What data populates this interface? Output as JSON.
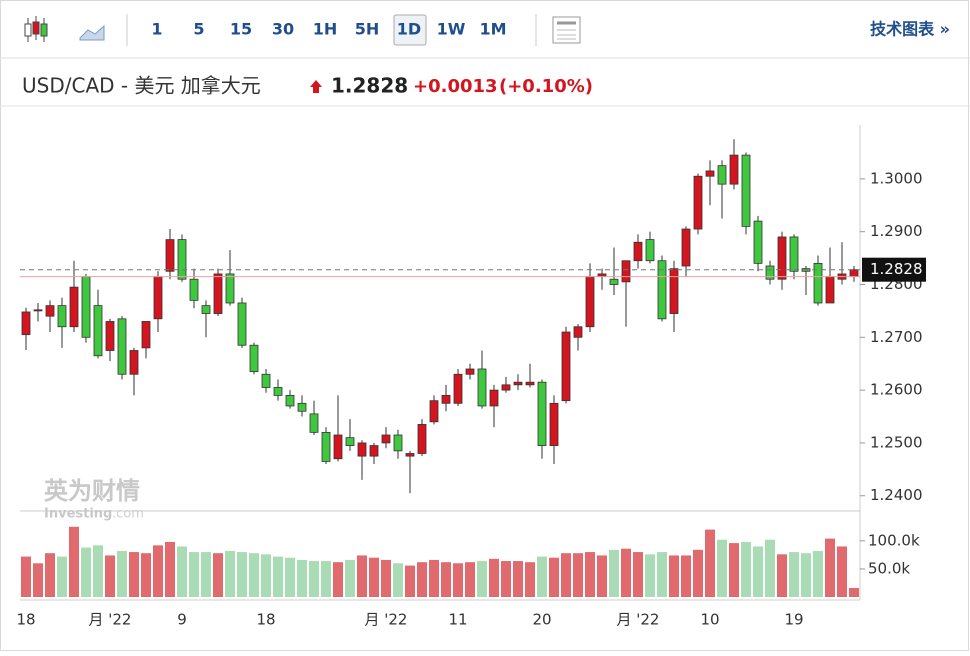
{
  "toolbar": {
    "intervals": [
      "1",
      "5",
      "15",
      "30",
      "1H",
      "5H",
      "1D",
      "1W",
      "1M"
    ],
    "selected": "1D",
    "link": "技术图表 »"
  },
  "header": {
    "title": "USD/CAD - 美元 加拿大元",
    "change": "+0.0013",
    "change_pct": "(+0.10%)"
  },
  "watermark": {
    "brand": "英为财情",
    "site": "Investing",
    "domain": ".com"
  },
  "chart_data": {
    "type": "candlestick",
    "categories": [
      "18",
      null,
      null,
      null,
      null,
      null,
      null,
      "月 '22",
      null,
      null,
      null,
      null,
      null,
      "9",
      null,
      null,
      null,
      null,
      null,
      null,
      "18",
      null,
      null,
      null,
      null,
      null,
      null,
      null,
      null,
      null,
      "月 '22",
      null,
      null,
      null,
      null,
      null,
      "11",
      null,
      null,
      null,
      null,
      null,
      null,
      "20",
      null,
      null,
      null,
      null,
      null,
      null,
      null,
      "月 '22",
      null,
      null,
      null,
      null,
      null,
      "10",
      null,
      null,
      null,
      null,
      null,
      null,
      "19",
      null,
      null,
      null,
      null,
      null
    ],
    "candles": [
      [
        1.2705,
        1.2756,
        1.2676,
        1.2748
      ],
      [
        1.275,
        1.2765,
        1.273,
        1.2752
      ],
      [
        1.274,
        1.277,
        1.271,
        1.276
      ],
      [
        1.276,
        1.2775,
        1.268,
        1.272
      ],
      [
        1.272,
        1.2845,
        1.271,
        1.2795
      ],
      [
        1.2815,
        1.282,
        1.269,
        1.27
      ],
      [
        1.276,
        1.279,
        1.266,
        1.2665
      ],
      [
        1.2675,
        1.2735,
        1.2655,
        1.273
      ],
      [
        1.2735,
        1.274,
        1.262,
        1.263
      ],
      [
        1.263,
        1.268,
        1.259,
        1.2675
      ],
      [
        1.268,
        1.273,
        1.266,
        1.273
      ],
      [
        1.2735,
        1.2825,
        1.271,
        1.2815
      ],
      [
        1.2825,
        1.2905,
        1.281,
        1.2885
      ],
      [
        1.2885,
        1.2895,
        1.2805,
        1.281
      ],
      [
        1.281,
        1.283,
        1.2755,
        1.277
      ],
      [
        1.276,
        1.277,
        1.27,
        1.2745
      ],
      [
        1.2745,
        1.283,
        1.274,
        1.282
      ],
      [
        1.282,
        1.2865,
        1.276,
        1.2765
      ],
      [
        1.2765,
        1.2775,
        1.268,
        1.2685
      ],
      [
        1.2685,
        1.269,
        1.263,
        1.2635
      ],
      [
        1.263,
        1.264,
        1.2595,
        1.2605
      ],
      [
        1.2605,
        1.262,
        1.258,
        1.259
      ],
      [
        1.259,
        1.26,
        1.2565,
        1.257
      ],
      [
        1.2575,
        1.259,
        1.255,
        1.256
      ],
      [
        1.2555,
        1.258,
        1.2515,
        1.252
      ],
      [
        1.252,
        1.253,
        1.246,
        1.2465
      ],
      [
        1.247,
        1.259,
        1.2465,
        1.2515
      ],
      [
        1.251,
        1.2545,
        1.2485,
        1.2495
      ],
      [
        1.2475,
        1.2505,
        1.243,
        1.25
      ],
      [
        1.2475,
        1.25,
        1.246,
        1.2495
      ],
      [
        1.25,
        1.253,
        1.249,
        1.2515
      ],
      [
        1.2515,
        1.2525,
        1.247,
        1.2485
      ],
      [
        1.2475,
        1.2485,
        1.2405,
        1.248
      ],
      [
        1.248,
        1.2545,
        1.2475,
        1.2535
      ],
      [
        1.254,
        1.259,
        1.2535,
        1.258
      ],
      [
        1.2575,
        1.261,
        1.256,
        1.259
      ],
      [
        1.2575,
        1.264,
        1.257,
        1.263
      ],
      [
        1.263,
        1.265,
        1.262,
        1.264
      ],
      [
        1.264,
        1.2675,
        1.2565,
        1.257
      ],
      [
        1.257,
        1.261,
        1.253,
        1.26
      ],
      [
        1.26,
        1.2625,
        1.2595,
        1.261
      ],
      [
        1.261,
        1.263,
        1.26,
        1.2615
      ],
      [
        1.261,
        1.265,
        1.2605,
        1.2615
      ],
      [
        1.2615,
        1.262,
        1.247,
        1.2495
      ],
      [
        1.2495,
        1.259,
        1.246,
        1.2575
      ],
      [
        1.258,
        1.272,
        1.2575,
        1.271
      ],
      [
        1.27,
        1.2725,
        1.2675,
        1.272
      ],
      [
        1.272,
        1.284,
        1.271,
        1.2815
      ],
      [
        1.2815,
        1.283,
        1.279,
        1.282
      ],
      [
        1.281,
        1.287,
        1.278,
        1.28
      ],
      [
        1.2805,
        1.2845,
        1.272,
        1.2845
      ],
      [
        1.2845,
        1.2895,
        1.283,
        1.288
      ],
      [
        1.2885,
        1.29,
        1.284,
        1.2845
      ],
      [
        1.2845,
        1.2855,
        1.273,
        1.2735
      ],
      [
        1.2745,
        1.2845,
        1.271,
        1.283
      ],
      [
        1.2835,
        1.291,
        1.2815,
        1.2905
      ],
      [
        1.2905,
        1.301,
        1.2895,
        1.3005
      ],
      [
        1.3005,
        1.3035,
        1.295,
        1.3015
      ],
      [
        1.3025,
        1.3035,
        1.2925,
        1.299
      ],
      [
        1.299,
        1.3075,
        1.298,
        1.3045
      ],
      [
        1.3045,
        1.305,
        1.2895,
        1.291
      ],
      [
        1.292,
        1.293,
        1.2825,
        1.284
      ],
      [
        1.2835,
        1.2845,
        1.28,
        1.281
      ],
      [
        1.281,
        1.29,
        1.279,
        1.289
      ],
      [
        1.289,
        1.2895,
        1.281,
        1.2825
      ],
      [
        1.283,
        1.2835,
        1.278,
        1.2825
      ],
      [
        1.284,
        1.2855,
        1.276,
        1.2765
      ],
      [
        1.2765,
        1.287,
        1.2765,
        1.2815
      ],
      [
        1.281,
        1.288,
        1.28,
        1.282
      ],
      [
        1.2815,
        1.2835,
        1.2805,
        1.2828
      ]
    ],
    "volume": [
      72000,
      60000,
      78000,
      72000,
      125000,
      88000,
      92000,
      74000,
      82000,
      80000,
      78000,
      92000,
      98000,
      90000,
      80000,
      80000,
      78000,
      82000,
      80000,
      78000,
      76000,
      72000,
      70000,
      66000,
      64000,
      64000,
      62000,
      66000,
      74000,
      70000,
      66000,
      60000,
      56000,
      62000,
      66000,
      62000,
      60000,
      62000,
      64000,
      68000,
      64000,
      64000,
      62000,
      72000,
      70000,
      78000,
      78000,
      80000,
      74000,
      84000,
      86000,
      80000,
      76000,
      80000,
      74000,
      74000,
      84000,
      120000,
      102000,
      96000,
      98000,
      90000,
      102000,
      76000,
      80000,
      78000,
      82000,
      104000,
      90000,
      16000
    ],
    "up_color": "#d2151e",
    "down_color": "#3fc73f",
    "vol_up_color": "#e06a6e",
    "vol_down_color": "#a9dcb4",
    "last_price": 1.2828,
    "prev_close": 1.2815,
    "ylim": [
      1.2373,
      1.3102
    ],
    "yticks": [
      {
        "value": 1.24,
        "label": "1.2400"
      },
      {
        "value": 1.25,
        "label": "1.2500"
      },
      {
        "value": 1.26,
        "label": "1.2600"
      },
      {
        "value": 1.27,
        "label": "1.2700"
      },
      {
        "value": 1.28,
        "label": "1.2800"
      },
      {
        "value": 1.29,
        "label": "1.2900"
      },
      {
        "value": 1.3,
        "label": "1.3000"
      }
    ],
    "y2lim": [
      0,
      146000
    ],
    "y2ticks": [
      {
        "value": 50000,
        "label": "50.0k"
      },
      {
        "value": 100000,
        "label": "100.0k"
      }
    ]
  }
}
